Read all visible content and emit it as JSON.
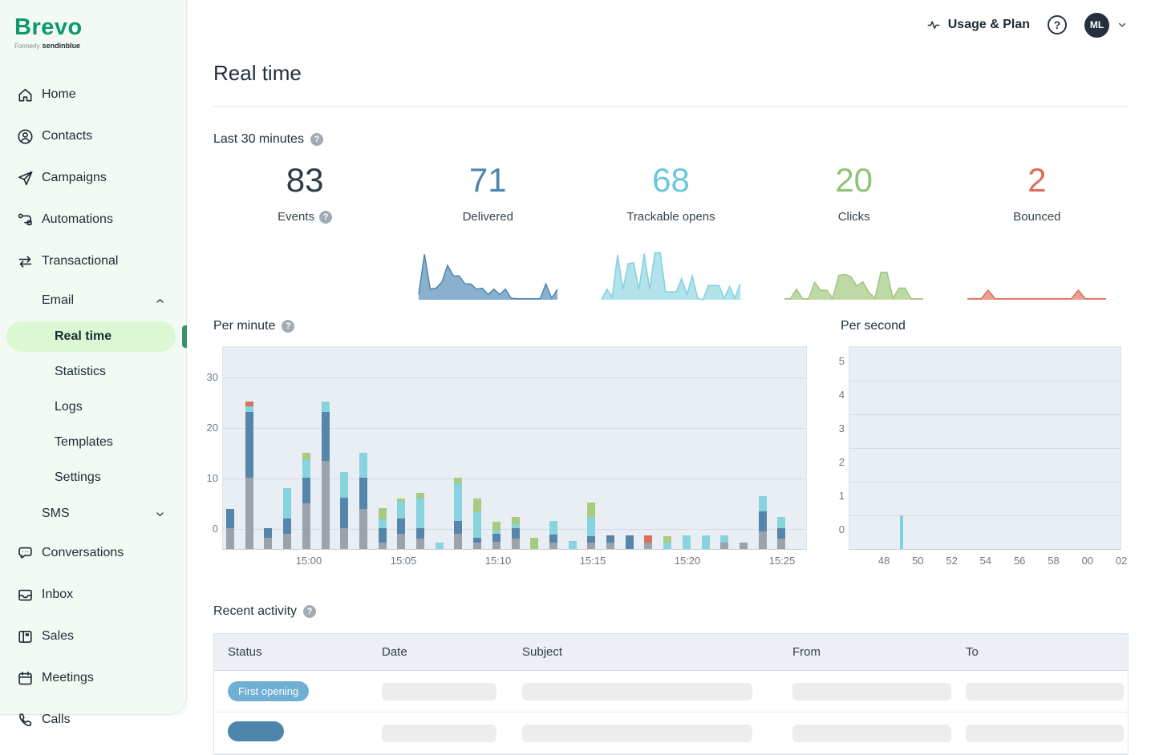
{
  "sidebar": {
    "logo": "Brevo",
    "logo_formerly": "Formerly",
    "logo_sub": "sendinblue",
    "items": [
      {
        "label": "Home",
        "icon": "home-icon",
        "type": "top"
      },
      {
        "label": "Contacts",
        "icon": "contacts-icon",
        "type": "top"
      },
      {
        "label": "Campaigns",
        "icon": "campaigns-icon",
        "type": "top"
      },
      {
        "label": "Automations",
        "icon": "automations-icon",
        "type": "top"
      },
      {
        "label": "Transactional",
        "icon": "transactional-icon",
        "type": "top"
      },
      {
        "label": "Email",
        "type": "section",
        "chevron": "up"
      },
      {
        "label": "Real time",
        "type": "sub",
        "active": true
      },
      {
        "label": "Statistics",
        "type": "sub"
      },
      {
        "label": "Logs",
        "type": "sub"
      },
      {
        "label": "Templates",
        "type": "sub"
      },
      {
        "label": "Settings",
        "type": "sub"
      },
      {
        "label": "SMS",
        "type": "section",
        "chevron": "down"
      },
      {
        "label": "Conversations",
        "icon": "conversations-icon",
        "type": "top"
      },
      {
        "label": "Inbox",
        "icon": "inbox-icon",
        "type": "top"
      },
      {
        "label": "Sales",
        "icon": "sales-icon",
        "type": "top"
      },
      {
        "label": "Meetings",
        "icon": "meetings-icon",
        "type": "top"
      },
      {
        "label": "Calls",
        "icon": "calls-icon",
        "type": "top"
      }
    ]
  },
  "header": {
    "usage_plan_label": "Usage & Plan",
    "help_glyph": "?",
    "avatar_initials": "ML"
  },
  "page": {
    "title": "Real time"
  },
  "last30": {
    "title": "Last 30 minutes",
    "stats": [
      {
        "value": "83",
        "label": "Events",
        "color": "#2e3c48",
        "has_help": true
      },
      {
        "value": "71",
        "label": "Delivered",
        "color": "#4e86ad",
        "sparkline": "delivered"
      },
      {
        "value": "68",
        "label": "Trackable opens",
        "color": "#69c8d9",
        "sparkline": "opens"
      },
      {
        "value": "20",
        "label": "Clicks",
        "color": "#8fc475",
        "sparkline": "clicks"
      },
      {
        "value": "2",
        "label": "Bounced",
        "color": "#dd6e58",
        "sparkline": "bounced"
      }
    ]
  },
  "chart_data": {
    "per_minute": {
      "type": "bar",
      "stacked": true,
      "title": "Per minute",
      "ylabel": "",
      "ylim": [
        -4,
        36
      ],
      "yticks": [
        0,
        10,
        20,
        30
      ],
      "x_tick_labels": [
        "15:00",
        "15:05",
        "15:10",
        "15:15",
        "15:20",
        "15:25"
      ],
      "series_order": [
        "gray",
        "blue",
        "cyan",
        "green",
        "red"
      ],
      "series_colors": {
        "gray": "#9aa2ab",
        "blue": "#5585ab",
        "cyan": "#87d3de",
        "green": "#a9cb80",
        "red": "#d9705c"
      },
      "note": "30 one-minute bars; segment values are stack heights in axis units measured from chart baseline (-4)",
      "bars": [
        [
          4.2,
          3.8,
          0,
          0,
          0
        ],
        [
          14.2,
          13.0,
          1.0,
          0,
          1.1
        ],
        [
          2.2,
          2.0,
          0,
          0,
          0
        ],
        [
          3.0,
          3.0,
          6.1,
          0,
          0
        ],
        [
          9.1,
          5.1,
          3.4,
          1.4,
          0
        ],
        [
          17.4,
          9.7,
          2.1,
          0,
          0
        ],
        [
          4.2,
          5.9,
          5.1,
          0,
          0
        ],
        [
          8.0,
          6.1,
          4.9,
          0,
          0
        ],
        [
          1.3,
          2.9,
          1.7,
          2.2,
          0
        ],
        [
          3.0,
          3.0,
          3.4,
          0.7,
          0
        ],
        [
          2.1,
          2.1,
          5.9,
          1.1,
          0
        ],
        [
          0,
          0,
          1.3,
          0,
          0
        ],
        [
          3.0,
          2.5,
          7.5,
          1.2,
          0
        ],
        [
          1.3,
          0.9,
          5.1,
          2.8,
          0
        ],
        [
          1.5,
          1.6,
          0.5,
          1.8,
          0
        ],
        [
          2.1,
          2.1,
          0.8,
          1.3,
          0
        ],
        [
          0,
          0,
          0,
          2.3,
          0
        ],
        [
          1.3,
          1.6,
          2.6,
          0,
          0
        ],
        [
          0,
          0,
          1.6,
          0,
          0
        ],
        [
          1.3,
          1.3,
          3.7,
          2.9,
          0
        ],
        [
          1.3,
          1.4,
          0,
          0,
          0
        ],
        [
          0,
          2.7,
          0,
          0,
          0
        ],
        [
          1.3,
          0,
          0,
          0,
          1.4
        ],
        [
          0,
          0,
          1.3,
          1.3,
          0
        ],
        [
          0,
          0,
          2.7,
          0,
          0
        ],
        [
          0,
          0,
          2.7,
          0,
          0
        ],
        [
          1.3,
          0,
          1.4,
          0,
          0
        ],
        [
          1.3,
          0,
          0,
          0,
          0
        ],
        [
          3.5,
          4.0,
          3.0,
          0,
          0
        ],
        [
          2.1,
          2.1,
          2.1,
          0,
          0
        ]
      ]
    },
    "per_second": {
      "type": "bar",
      "title": "Per second",
      "ylim": [
        -1,
        5
      ],
      "yticks": [
        5,
        4,
        3,
        2,
        1,
        0
      ],
      "x_tick_labels": [
        "48",
        "50",
        "52",
        "54",
        "56",
        "58",
        "00",
        "02"
      ],
      "bars": [
        {
          "second": "49",
          "value": 1,
          "color": "#7fd2df"
        }
      ]
    },
    "sparklines": {
      "delivered": {
        "type": "area",
        "fill": "#74a3c7",
        "stroke": "#4f86ad",
        "values": [
          1,
          8.6,
          2,
          2.2,
          3.3,
          6.5,
          4.5,
          4.5,
          3,
          3,
          2,
          2.2,
          1,
          2,
          1,
          2,
          0.3,
          0.2,
          0.2,
          0.2,
          0.2,
          0.2,
          3,
          0.3,
          2
        ]
      },
      "opens": {
        "type": "area",
        "fill": "#a5dde6",
        "stroke": "#7fd2df",
        "values": [
          0,
          2,
          0.5,
          8.5,
          2,
          6.8,
          7,
          2,
          8.7,
          2,
          8.9,
          8.9,
          1.5,
          1.5,
          1.5,
          4,
          1,
          4.5,
          0.3,
          0,
          2.7,
          2.7,
          2.7,
          0.3,
          2.5,
          0.3,
          3
        ]
      },
      "clicks": {
        "type": "area",
        "fill": "#b3d295",
        "stroke": "#a3c584",
        "values": [
          0.2,
          0.2,
          2,
          0.2,
          0.2,
          3.3,
          1.8,
          1.8,
          0.3,
          4.6,
          4.8,
          4.4,
          2.6,
          3.4,
          1.4,
          0.3,
          5.2,
          5.2,
          0.3,
          2.2,
          2.2,
          0.2,
          0.2,
          0.2
        ]
      },
      "bounced": {
        "type": "area",
        "fill": "#e69180",
        "stroke": "#dd6e58",
        "values": [
          0.2,
          0.2,
          0.2,
          1.8,
          0.2,
          0.2,
          0.2,
          0.2,
          0.2,
          0.2,
          0.2,
          0.2,
          0.2,
          0.2,
          0.2,
          0.2,
          1.8,
          0.2,
          0.2,
          0.2,
          0.2
        ]
      }
    }
  },
  "recent": {
    "title": "Recent activity",
    "columns": [
      "Status",
      "Date",
      "Subject",
      "From",
      "To"
    ],
    "rows": [
      {
        "status": "First opening",
        "status_color": "#6fafd4",
        "skeleton": true
      },
      {
        "status": "",
        "status_color": "#4c86ad",
        "skeleton": true
      }
    ]
  }
}
